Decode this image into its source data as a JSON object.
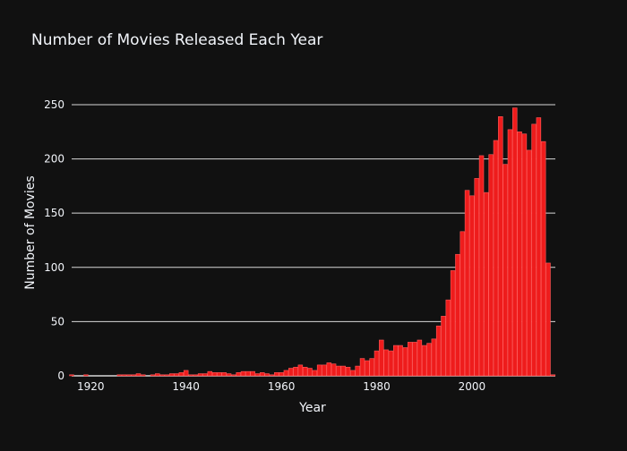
{
  "colors": {
    "background": "#111111",
    "bar_fill": "#ee1c1c",
    "bar_outline": "#ff5a5a",
    "grid": "#d8d8d8",
    "text": "#f2f5fa"
  },
  "chart_data": {
    "type": "bar",
    "title": "Number of Movies Released Each Year",
    "xlabel": "Year",
    "ylabel": "Number of Movies",
    "xlim": [
      1916,
      2017.5
    ],
    "ylim": [
      0,
      264
    ],
    "xticks": [
      1920,
      1940,
      1960,
      1980,
      2000
    ],
    "yticks": [
      0,
      50,
      100,
      150,
      200,
      250
    ],
    "grid": "horizontal",
    "legend": "none",
    "x": [
      1916,
      1917,
      1918,
      1919,
      1920,
      1921,
      1922,
      1923,
      1924,
      1925,
      1926,
      1927,
      1928,
      1929,
      1930,
      1931,
      1932,
      1933,
      1934,
      1935,
      1936,
      1937,
      1938,
      1939,
      1940,
      1941,
      1942,
      1943,
      1944,
      1945,
      1946,
      1947,
      1948,
      1949,
      1950,
      1951,
      1952,
      1953,
      1954,
      1955,
      1956,
      1957,
      1958,
      1959,
      1960,
      1961,
      1962,
      1963,
      1964,
      1965,
      1966,
      1967,
      1968,
      1969,
      1970,
      1971,
      1972,
      1973,
      1974,
      1975,
      1976,
      1977,
      1978,
      1979,
      1980,
      1981,
      1982,
      1983,
      1984,
      1985,
      1986,
      1987,
      1988,
      1989,
      1990,
      1991,
      1992,
      1993,
      1994,
      1995,
      1996,
      1997,
      1998,
      1999,
      2000,
      2001,
      2002,
      2003,
      2004,
      2005,
      2006,
      2007,
      2008,
      2009,
      2010,
      2011,
      2012,
      2013,
      2014,
      2015,
      2016,
      2017
    ],
    "values": [
      1,
      0,
      0,
      1,
      0,
      0,
      0,
      0,
      0,
      0,
      1,
      1,
      1,
      1,
      2,
      1,
      0,
      1,
      2,
      1,
      1,
      2,
      2,
      3,
      5,
      1,
      1,
      2,
      2,
      4,
      3,
      3,
      3,
      2,
      1,
      3,
      4,
      4,
      4,
      2,
      3,
      2,
      1,
      3,
      3,
      5,
      7,
      8,
      10,
      8,
      7,
      5,
      10,
      10,
      12,
      11,
      9,
      9,
      8,
      5,
      9,
      16,
      14,
      16,
      23,
      33,
      24,
      23,
      28,
      28,
      26,
      31,
      31,
      33,
      28,
      30,
      34,
      46,
      55,
      70,
      97,
      112,
      133,
      171,
      166,
      182,
      203,
      169,
      204,
      217,
      239,
      195,
      227,
      247,
      225,
      223,
      208,
      232,
      238,
      216,
      104,
      1
    ]
  }
}
